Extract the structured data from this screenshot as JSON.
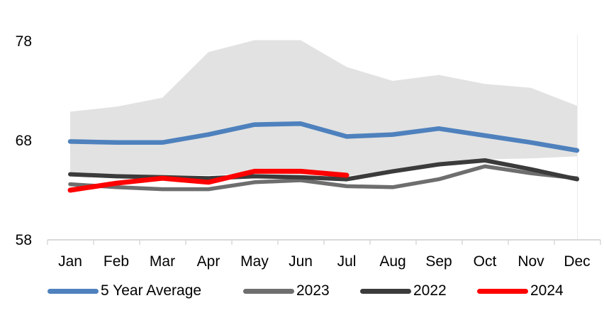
{
  "chart_data": {
    "type": "line",
    "title": "",
    "xlabel": "",
    "ylabel": "",
    "categories": [
      "Jan",
      "Feb",
      "Mar",
      "Apr",
      "May",
      "Jun",
      "Jul",
      "Aug",
      "Sep",
      "Oct",
      "Nov",
      "Dec"
    ],
    "y_axis": {
      "ticks": [
        78,
        68,
        58
      ],
      "range": [
        58,
        79
      ]
    },
    "grid": "off",
    "band": {
      "upper": [
        70.9,
        71.4,
        72.3,
        76.9,
        78.1,
        78.1,
        75.4,
        74.0,
        74.6,
        73.7,
        73.3,
        71.5
      ],
      "lower": [
        64.7,
        64.6,
        64.5,
        64.5,
        64.7,
        64.6,
        64.4,
        65.1,
        65.8,
        66.1,
        66.2,
        66.4
      ],
      "color": "#e2e2e2"
    },
    "series": [
      {
        "name": "5 Year Average",
        "color": "#4e81bd",
        "values": [
          67.9,
          67.8,
          67.8,
          68.6,
          69.6,
          69.7,
          68.4,
          68.6,
          69.2,
          68.5,
          67.8,
          67.0
        ]
      },
      {
        "name": "2023",
        "color": "#6e6e6e",
        "values": [
          63.6,
          63.3,
          63.1,
          63.1,
          63.8,
          64.0,
          63.4,
          63.3,
          64.1,
          65.4,
          64.7,
          64.2
        ]
      },
      {
        "name": "2022",
        "color": "#3b3b3b",
        "values": [
          64.6,
          64.4,
          64.3,
          64.2,
          64.4,
          64.3,
          64.1,
          64.9,
          65.6,
          66.0,
          65.1,
          64.1
        ]
      },
      {
        "name": "2024",
        "color": "#fe0000",
        "values": [
          63.0,
          63.7,
          64.2,
          63.8,
          64.9,
          64.9,
          64.5,
          null,
          null,
          null,
          null,
          null
        ]
      }
    ],
    "legend_position": "bottom",
    "axis_color": "#d9d9d9"
  },
  "legend": {
    "items": [
      {
        "label": "5 Year Average",
        "color": "#4e81bd"
      },
      {
        "label": "2023",
        "color": "#6e6e6e"
      },
      {
        "label": "2022",
        "color": "#3b3b3b"
      },
      {
        "label": "2024",
        "color": "#fe0000"
      }
    ]
  }
}
